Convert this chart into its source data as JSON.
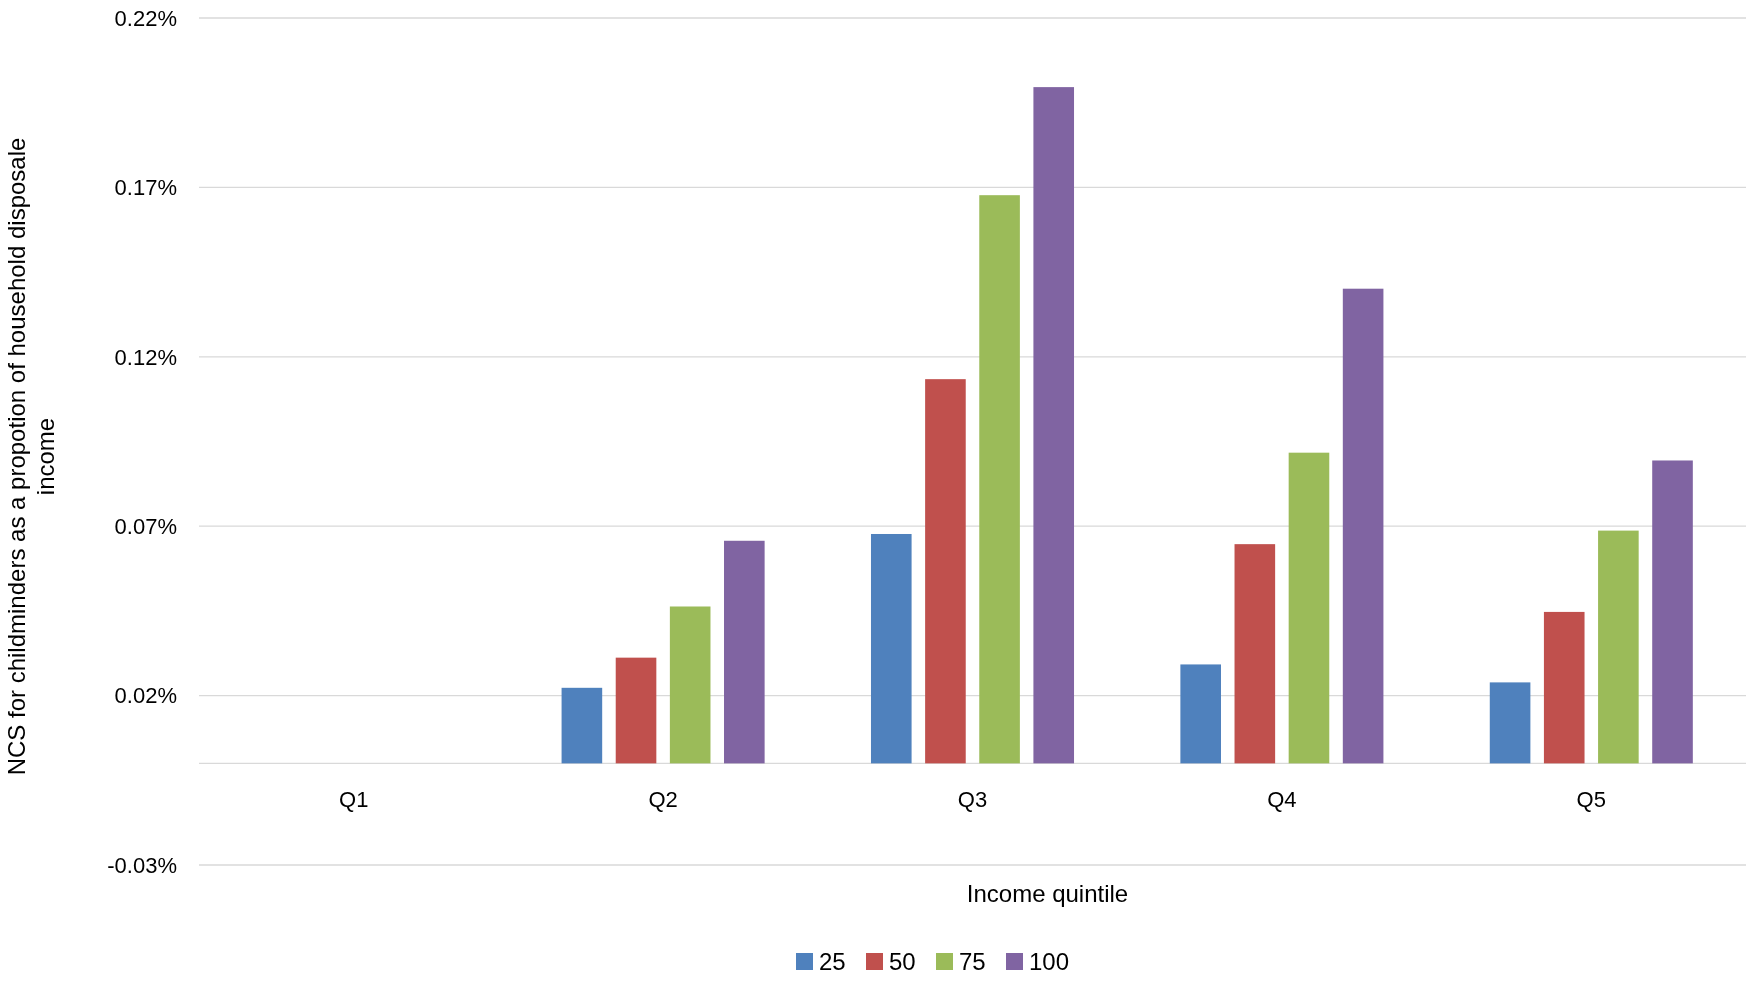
{
  "chart_data": {
    "type": "bar",
    "xlabel": "Income quintile",
    "ylabel": "NCS for childminders as a propotion  of household disposale income",
    "categories": [
      "Q1",
      "Q2",
      "Q3",
      "Q4",
      "Q5"
    ],
    "series": [
      {
        "name": "25",
        "color": "#4f81bd",
        "values": [
          0,
          0.0223,
          0.0677,
          0.0292,
          0.0239
        ]
      },
      {
        "name": "50",
        "color": "#c0504d",
        "values": [
          0,
          0.0312,
          0.1134,
          0.0647,
          0.0447
        ]
      },
      {
        "name": "75",
        "color": "#9bbb59",
        "values": [
          0,
          0.0463,
          0.1677,
          0.0917,
          0.0687
        ]
      },
      {
        "name": "100",
        "color": "#8064a2",
        "values": [
          0,
          0.0657,
          0.1996,
          0.1401,
          0.0894
        ]
      }
    ],
    "ylim": [
      -0.03,
      0.22
    ],
    "yticks": [
      {
        "value": -0.03,
        "label": "-0.03%"
      },
      {
        "value": 0.02,
        "label": "0.02%"
      },
      {
        "value": 0.07,
        "label": "0.07%"
      },
      {
        "value": 0.12,
        "label": "0.12%"
      },
      {
        "value": 0.17,
        "label": "0.17%"
      },
      {
        "value": 0.22,
        "label": "0.22%"
      }
    ],
    "grid": "y",
    "legend": "bottom"
  }
}
